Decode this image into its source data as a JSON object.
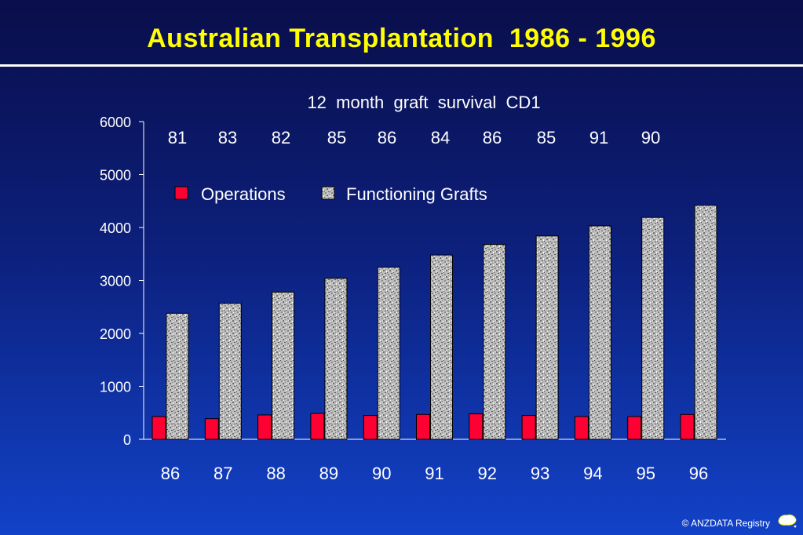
{
  "slide": {
    "title": "Australian Transplantation  1986 - 1996",
    "credit": "© ANZDATA Registry"
  },
  "colors": {
    "title": "#ffff00",
    "operations": "#ff0033",
    "grafts": "#b0b0b0",
    "text": "#ffffff"
  },
  "chart_data": {
    "type": "bar",
    "title": "12  month  graft  survival  CD1",
    "categories": [
      "86",
      "87",
      "88",
      "89",
      "90",
      "91",
      "92",
      "93",
      "94",
      "95",
      "96"
    ],
    "annotations": [
      "81",
      "83",
      "82",
      "85",
      "86",
      "84",
      "86",
      "85",
      "91",
      "90"
    ],
    "series": [
      {
        "name": "Operations",
        "values": [
          430,
          390,
          460,
          490,
          450,
          470,
          480,
          450,
          430,
          430,
          470
        ]
      },
      {
        "name": "Functioning Grafts",
        "values": [
          2380,
          2570,
          2780,
          3040,
          3250,
          3480,
          3680,
          3840,
          4030,
          4190,
          4420
        ]
      }
    ],
    "ylim": [
      0,
      6000
    ],
    "yticks": [
      0,
      1000,
      2000,
      3000,
      4000,
      5000,
      6000
    ],
    "grid": false,
    "legend": "top-left"
  }
}
